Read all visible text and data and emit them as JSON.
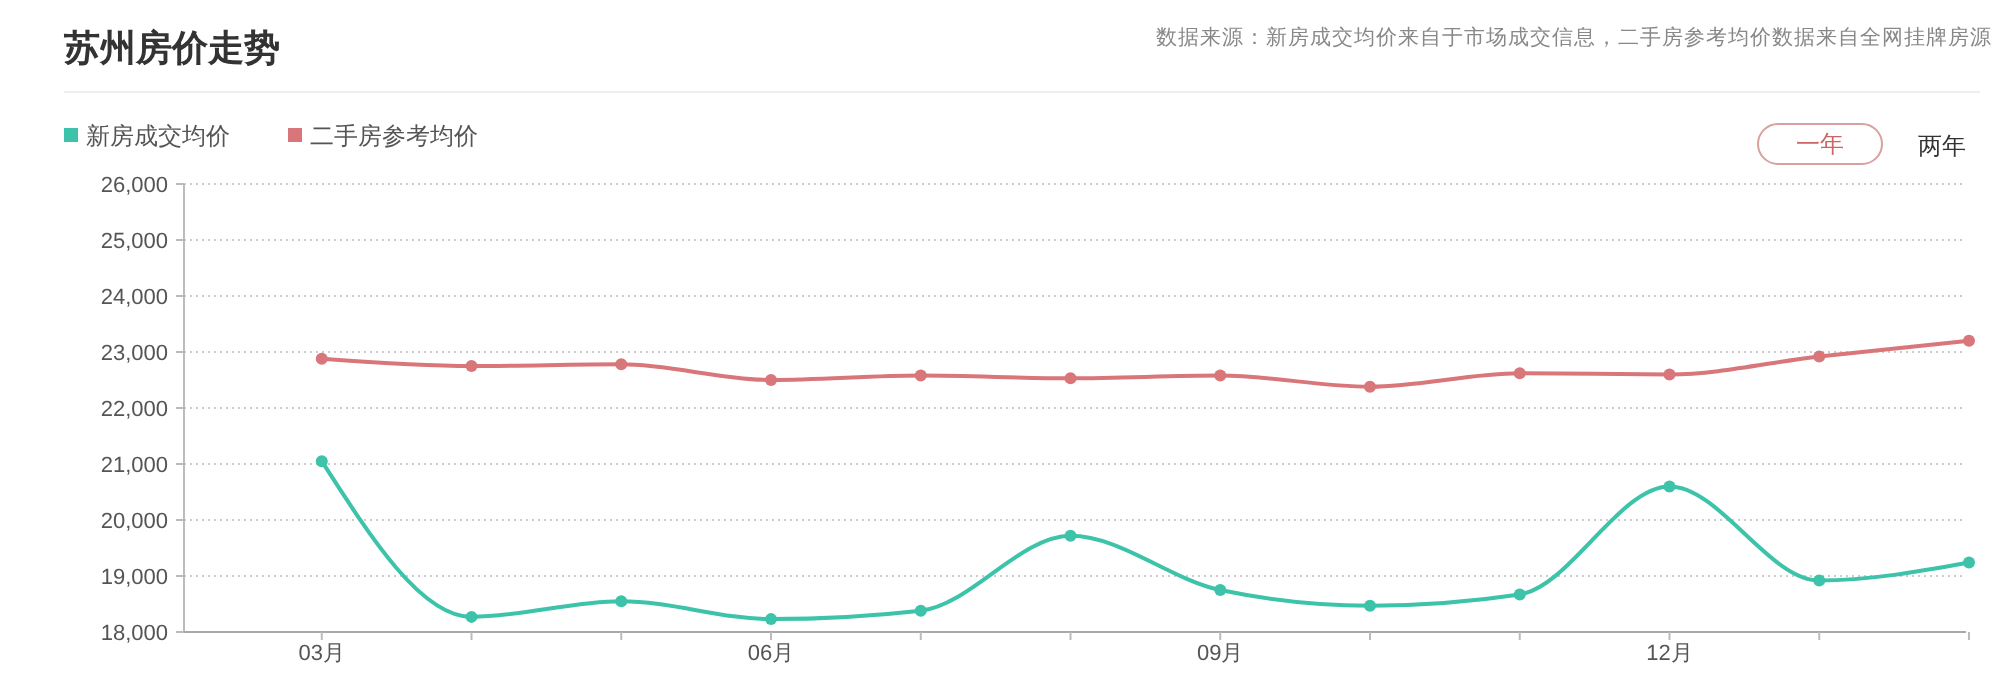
{
  "chart_data": {
    "type": "line",
    "title": "苏州房价走势",
    "annotations": [
      "数据来源：新房成交均价来自于市场成交信息，二手房参考均价数据来自全网挂牌房源",
      "一年",
      "两年"
    ],
    "categories": [
      "03月",
      null,
      null,
      "06月",
      null,
      null,
      "09月",
      null,
      null,
      "12月",
      null,
      null
    ],
    "series": [
      {
        "name": "新房成交均价",
        "color": "#3cc3a9",
        "values": [
          21050,
          18270,
          18550,
          18230,
          18380,
          19720,
          18750,
          18470,
          18670,
          20600,
          18920,
          19240
        ]
      },
      {
        "name": "二手房参考均价",
        "color": "#d9767a",
        "values": [
          22880,
          22750,
          22780,
          22500,
          22580,
          22530,
          22580,
          22380,
          22620,
          22600,
          22920,
          23200
        ]
      }
    ],
    "ylim": [
      18000,
      26000
    ],
    "yticks": [
      {
        "value": 18000,
        "label": "18,000"
      },
      {
        "value": 19000,
        "label": "19,000"
      },
      {
        "value": 20000,
        "label": "20,000"
      },
      {
        "value": 21000,
        "label": "21,000"
      },
      {
        "value": 22000,
        "label": "22,000"
      },
      {
        "value": 23000,
        "label": "23,000"
      },
      {
        "value": 24000,
        "label": "24,000"
      },
      {
        "value": 25000,
        "label": "25,000"
      },
      {
        "value": 26000,
        "label": "26,000"
      }
    ],
    "grid": "y",
    "legend": "top left",
    "marker": "circle",
    "line_style": "solid"
  }
}
